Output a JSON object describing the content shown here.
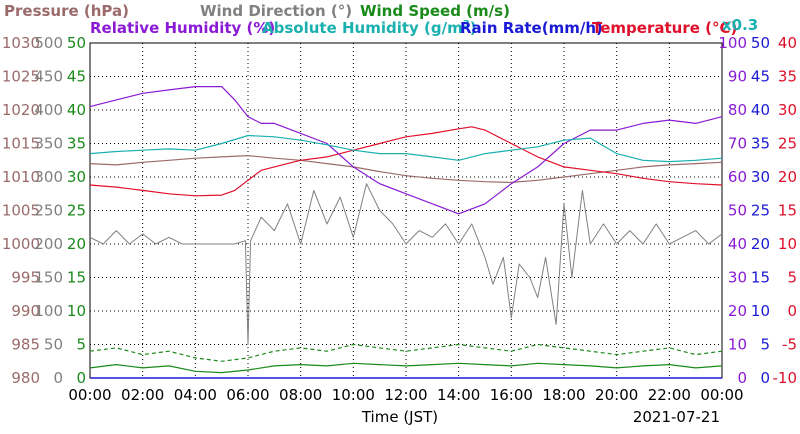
{
  "chart_data": {
    "type": "line",
    "date": "2021-07-21",
    "xlabel": "Time (JST)",
    "x_ticks": [
      "00:00",
      "02:00",
      "04:00",
      "06:00",
      "08:00",
      "10:00",
      "12:00",
      "14:00",
      "16:00",
      "18:00",
      "20:00",
      "22:00",
      "00:00"
    ],
    "x_range_hours": [
      0,
      24
    ],
    "grid": true,
    "titles": {
      "pressure": "Pressure (hPa)",
      "wind_direction": "Wind Direction (°)",
      "wind_speed": "Wind Speed (m/s)",
      "rh": "Relative Humidity (%)",
      "ah_main": "Absolute Humidity (g/m",
      "ah_sup": "3",
      "ah_tail": ")",
      "rain": "Rain Rate(mm/h)",
      "temp": "Temperature (°C)",
      "factor": "x0.3"
    },
    "colors": {
      "pressure": "#9b6b6b",
      "wind_direction": "#808080",
      "wind_speed": "#1a8a1a",
      "rh": "#8a1ad6",
      "ah": "#1ab0b0",
      "rain": "#1a1ad6",
      "temp": "#e0102a"
    },
    "axes": {
      "pressure": {
        "range": [
          980,
          1030
        ],
        "ticks": [
          "1030",
          "1025",
          "1020",
          "1015",
          "1010",
          "1005",
          "1000",
          "995",
          "990",
          "985",
          "980"
        ]
      },
      "wind_direction": {
        "range": [
          0,
          500
        ],
        "ticks": [
          "500",
          "450",
          "400",
          "350",
          "300",
          "250",
          "200",
          "150",
          "100",
          "50",
          "0"
        ]
      },
      "wind_speed": {
        "range": [
          0,
          50
        ],
        "ticks": [
          "50",
          "45",
          "40",
          "35",
          "30",
          "25",
          "20",
          "15",
          "10",
          "5",
          "0"
        ]
      },
      "rh": {
        "range": [
          0,
          100
        ],
        "ticks": [
          "100",
          "90",
          "80",
          "70",
          "60",
          "50",
          "40",
          "30",
          "20",
          "10",
          "0"
        ]
      },
      "rain": {
        "range": [
          0,
          50
        ],
        "ticks": [
          "50",
          "45",
          "40",
          "35",
          "30",
          "25",
          "20",
          "15",
          "10",
          "5",
          "0"
        ]
      },
      "temp": {
        "range": [
          -10,
          40
        ],
        "ticks": [
          "40",
          "35",
          "30",
          "25",
          "20",
          "15",
          "10",
          "5",
          "0",
          "-5",
          "-10"
        ]
      }
    },
    "series": [
      {
        "key": "pressure",
        "name": "Pressure (hPa)",
        "axis": "pressure",
        "x": [
          0,
          1,
          2,
          3,
          4,
          5,
          6,
          7,
          8,
          9,
          10,
          11,
          12,
          13,
          14,
          15,
          16,
          17,
          18,
          19,
          20,
          21,
          22,
          23,
          24
        ],
        "y": [
          1012.0,
          1011.8,
          1012.2,
          1012.5,
          1012.8,
          1013.0,
          1013.2,
          1012.8,
          1012.5,
          1012.0,
          1011.5,
          1010.8,
          1010.2,
          1009.8,
          1009.5,
          1009.3,
          1009.2,
          1009.5,
          1010.0,
          1010.5,
          1011.0,
          1011.5,
          1011.8,
          1012.0,
          1012.2
        ]
      },
      {
        "key": "temp",
        "name": "Temperature (°C)",
        "axis": "temp",
        "x": [
          0,
          1,
          2,
          3,
          4,
          5,
          5.5,
          6,
          6.5,
          7,
          7.5,
          8,
          9,
          10,
          11,
          12,
          13,
          14,
          14.5,
          15,
          16,
          17,
          18,
          19,
          20,
          21,
          22,
          23,
          24
        ],
        "y": [
          18.8,
          18.5,
          18.0,
          17.5,
          17.2,
          17.3,
          18.0,
          19.5,
          21.0,
          21.5,
          22.0,
          22.5,
          23.0,
          24.0,
          25.0,
          26.0,
          26.5,
          27.2,
          27.5,
          27.0,
          25.0,
          23.0,
          21.5,
          21.0,
          20.5,
          19.8,
          19.3,
          19.0,
          18.8
        ]
      },
      {
        "key": "rh",
        "name": "Relative Humidity (%)",
        "axis": "rh",
        "x": [
          0,
          1,
          2,
          3,
          4,
          5,
          5.5,
          6,
          6.5,
          7,
          8,
          9,
          10,
          11,
          12,
          13,
          14,
          15,
          16,
          17,
          18,
          19,
          20,
          21,
          22,
          23,
          24
        ],
        "y": [
          81,
          83,
          85,
          86,
          87,
          87,
          83,
          78,
          76,
          76,
          73,
          70,
          63,
          58,
          55,
          52,
          49,
          52,
          58,
          63,
          70,
          74,
          74,
          76,
          77,
          76,
          78
        ]
      },
      {
        "key": "ah",
        "name": "Absolute Humidity (g/m3)",
        "axis": "wind_speed",
        "x": [
          0,
          1,
          2,
          3,
          4,
          5,
          6,
          7,
          8,
          9,
          10,
          11,
          12,
          13,
          14,
          15,
          16,
          17,
          18,
          19,
          20,
          21,
          22,
          23,
          24
        ],
        "y": [
          33.5,
          33.8,
          34.0,
          34.2,
          34.0,
          35.0,
          36.2,
          36.0,
          35.5,
          34.8,
          34.0,
          33.5,
          33.5,
          33.0,
          32.5,
          33.5,
          34.0,
          34.5,
          35.5,
          35.8,
          33.5,
          32.5,
          32.3,
          32.5,
          32.8
        ]
      },
      {
        "key": "wind_direction",
        "name": "Wind Direction (°)",
        "axis": "wind_direction",
        "x": [
          0,
          0.5,
          1,
          1.5,
          2,
          2.5,
          3,
          3.5,
          4,
          4.5,
          5,
          5.5,
          5.9,
          6,
          6.1,
          6.5,
          7,
          7.5,
          8,
          8.5,
          9,
          9.5,
          10,
          10.5,
          11,
          11.5,
          12,
          12.5,
          13,
          13.5,
          14,
          14.5,
          15,
          15.3,
          15.7,
          16,
          16.3,
          16.7,
          17,
          17.3,
          17.7,
          18,
          18.3,
          18.7,
          19,
          19.5,
          20,
          20.5,
          21,
          21.5,
          22,
          22.5,
          23,
          23.5,
          24
        ],
        "y": [
          210,
          200,
          220,
          200,
          215,
          200,
          210,
          200,
          200,
          200,
          200,
          200,
          205,
          50,
          205,
          240,
          220,
          260,
          200,
          280,
          230,
          270,
          210,
          290,
          250,
          230,
          200,
          220,
          210,
          230,
          200,
          230,
          180,
          140,
          180,
          90,
          170,
          150,
          120,
          180,
          80,
          260,
          150,
          280,
          200,
          230,
          200,
          220,
          200,
          230,
          200,
          210,
          220,
          200,
          215
        ]
      },
      {
        "key": "wind_speed_max",
        "name": "Wind Speed (m/s)",
        "axis": "wind_speed",
        "x": [
          0,
          1,
          2,
          3,
          4,
          5,
          6,
          7,
          8,
          9,
          10,
          11,
          12,
          13,
          14,
          15,
          16,
          17,
          18,
          19,
          20,
          21,
          22,
          23,
          24
        ],
        "y": [
          4.0,
          4.5,
          3.5,
          4.0,
          3.0,
          2.5,
          3.0,
          4.0,
          4.5,
          4.0,
          5.0,
          4.5,
          4.0,
          4.5,
          5.0,
          4.5,
          4.0,
          5.0,
          4.5,
          4.0,
          3.5,
          4.0,
          4.5,
          3.5,
          4.0
        ]
      },
      {
        "key": "wind_speed",
        "name": "Wind Speed (m/s)",
        "axis": "wind_speed",
        "x": [
          0,
          1,
          2,
          3,
          4,
          5,
          6,
          7,
          8,
          9,
          10,
          11,
          12,
          13,
          14,
          15,
          16,
          17,
          18,
          19,
          20,
          21,
          22,
          23,
          24
        ],
        "y": [
          1.5,
          2.0,
          1.5,
          1.8,
          1.0,
          0.8,
          1.2,
          1.8,
          2.0,
          1.8,
          2.2,
          2.0,
          1.8,
          2.0,
          2.2,
          2.0,
          1.8,
          2.2,
          2.0,
          1.8,
          1.5,
          1.8,
          2.0,
          1.5,
          1.8
        ]
      },
      {
        "key": "rain",
        "name": "Rain Rate(mm/h)",
        "axis": "rain",
        "x": [
          0,
          24
        ],
        "y": [
          0,
          0
        ]
      }
    ]
  }
}
